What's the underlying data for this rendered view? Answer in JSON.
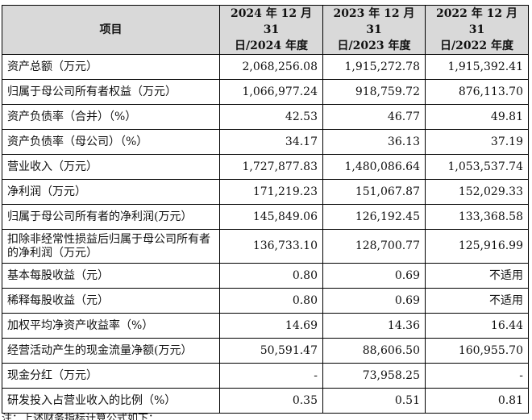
{
  "header": {
    "item": "项目",
    "col1_line1": "2024 年 12 月 31",
    "col1_line2": "日/2024 年度",
    "col2_line1": "2023 年 12 月 31",
    "col2_line2": "日/2023 年度",
    "col3_line1": "2022 年 12 月 31",
    "col3_line2": "日/2022 年度"
  },
  "rows": [
    {
      "label": "资产总额（万元）",
      "v2024": "2,068,256.08",
      "v2023": "1,915,272.78",
      "v2022": "1,915,392.41"
    },
    {
      "label": "归属于母公司所有者权益（万元）",
      "v2024": "1,066,977.24",
      "v2023": "918,759.72",
      "v2022": "876,113.70"
    },
    {
      "label": "资产负债率（合并）（%）",
      "v2024": "42.53",
      "v2023": "46.77",
      "v2022": "49.81"
    },
    {
      "label": "资产负债率（母公司）（%）",
      "v2024": "34.17",
      "v2023": "36.13",
      "v2022": "37.19"
    },
    {
      "label": "营业收入（万元）",
      "v2024": "1,727,877.83",
      "v2023": "1,480,086.64",
      "v2022": "1,053,537.74"
    },
    {
      "label": "净利润（万元）",
      "v2024": "171,219.23",
      "v2023": "151,067.87",
      "v2022": "152,029.33"
    },
    {
      "label": "归属于母公司所有者的净利润(万元）",
      "v2024": "145,849.06",
      "v2023": "126,192.45",
      "v2022": "133,368.58"
    },
    {
      "label": "扣除非经常性损益后归属于母公司所有者的净利润（万元）",
      "v2024": "136,733.10",
      "v2023": "128,700.77",
      "v2022": "125,916.99"
    },
    {
      "label": "基本每股收益（元）",
      "v2024": "0.80",
      "v2023": "0.69",
      "v2022": "不适用"
    },
    {
      "label": "稀释每股收益（元）",
      "v2024": "0.80",
      "v2023": "0.69",
      "v2022": "不适用"
    },
    {
      "label": "加权平均净资产收益率（%）",
      "v2024": "14.69",
      "v2023": "14.36",
      "v2022": "16.44"
    },
    {
      "label": "经营活动产生的现金流量净额(万元）",
      "v2024": "50,591.47",
      "v2023": "88,606.50",
      "v2022": "160,955.70"
    },
    {
      "label": "现金分红（万元）",
      "v2024": "-",
      "v2023": "73,958.25",
      "v2022": "-"
    },
    {
      "label": "研发投入占营业收入的比例（%）",
      "v2024": "0.35",
      "v2023": "0.51",
      "v2022": "0.81"
    }
  ],
  "note": "注：上述财务指标计算公式如下："
}
